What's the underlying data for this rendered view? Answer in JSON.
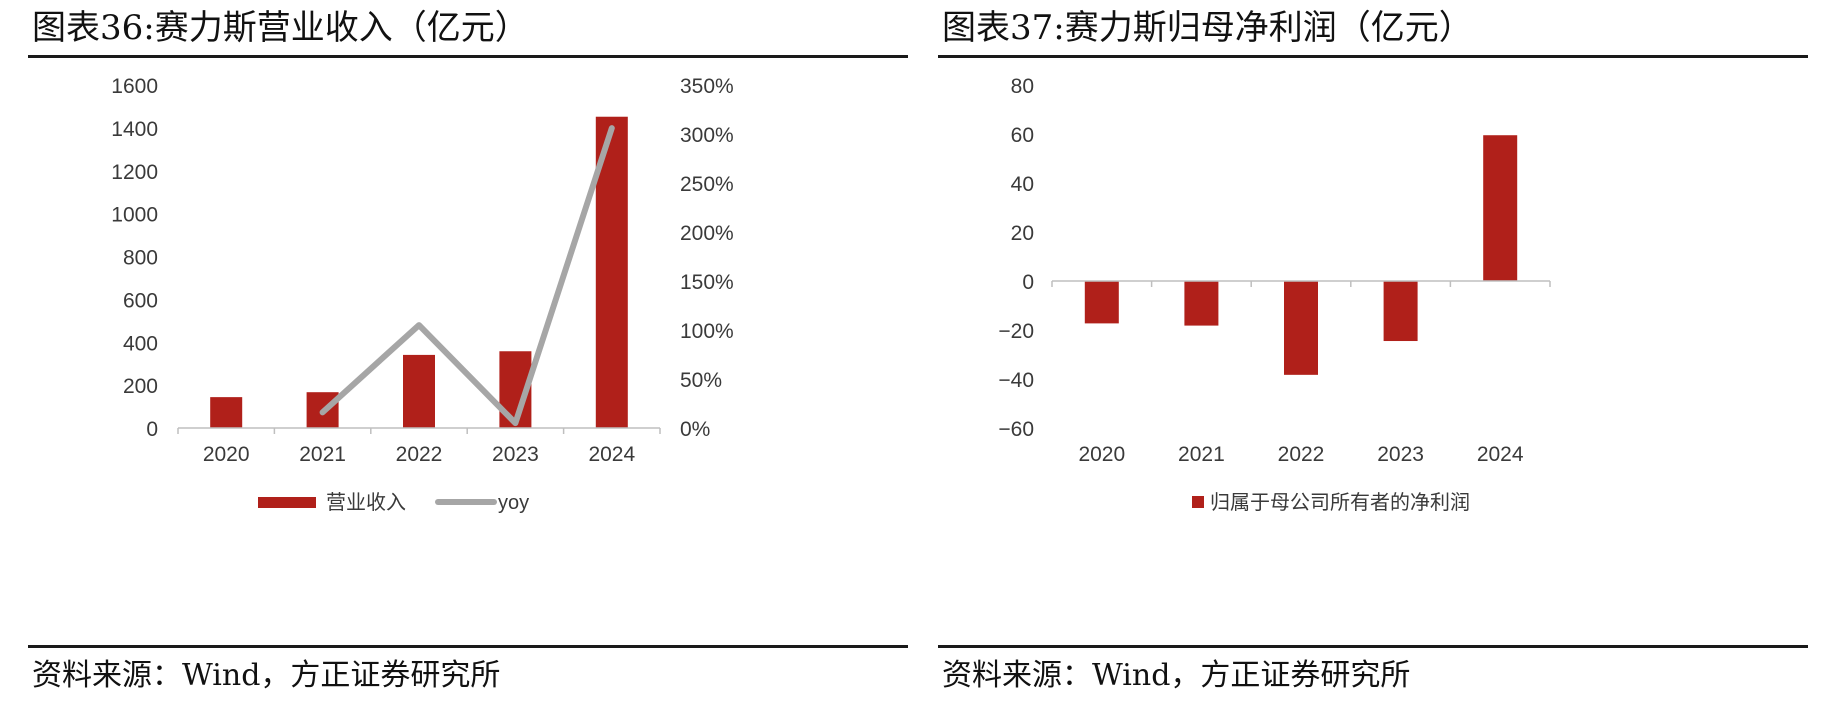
{
  "left": {
    "title": "图表36:赛力斯营业收入（亿元）",
    "source": "资料来源：Wind，方正证券研究所",
    "chart_data": {
      "type": "bar",
      "categories": [
        "2020",
        "2021",
        "2022",
        "2023",
        "2024"
      ],
      "series": [
        {
          "name": "营业收入",
          "type": "bar",
          "axis": "left",
          "color": "#B0201A",
          "values": [
            144,
            167,
            341,
            358,
            1452
          ]
        },
        {
          "name": "yoy",
          "type": "line",
          "axis": "right",
          "color": "#A6A6A6",
          "values": [
            null,
            0.16,
            1.05,
            0.05,
            3.06
          ]
        }
      ],
      "ylim": [
        0,
        1600
      ],
      "y_ticks": [
        "0",
        "200",
        "400",
        "600",
        "800",
        "1000",
        "1200",
        "1400",
        "1600"
      ],
      "y2lim": [
        0,
        3.5
      ],
      "y2_ticks": [
        "0%",
        "50%",
        "100%",
        "150%",
        "200%",
        "250%",
        "300%",
        "350%"
      ],
      "legend": "bottom",
      "grid": false
    }
  },
  "right": {
    "title": "图表37:赛力斯归母净利润（亿元）",
    "source": "资料来源：Wind，方正证券研究所",
    "chart_data": {
      "type": "bar",
      "categories": [
        "2020",
        "2021",
        "2022",
        "2023",
        "2024"
      ],
      "series": [
        {
          "name": "归属于母公司所有者的净利润",
          "color": "#B0201A",
          "values": [
            -17.3,
            -18.2,
            -38.3,
            -24.5,
            59.5
          ]
        }
      ],
      "ylim": [
        -60,
        80
      ],
      "y_ticks": [
        "−60",
        "−40",
        "−20",
        "0",
        "20",
        "40",
        "60",
        "80"
      ],
      "legend": "bottom",
      "grid": false
    }
  }
}
